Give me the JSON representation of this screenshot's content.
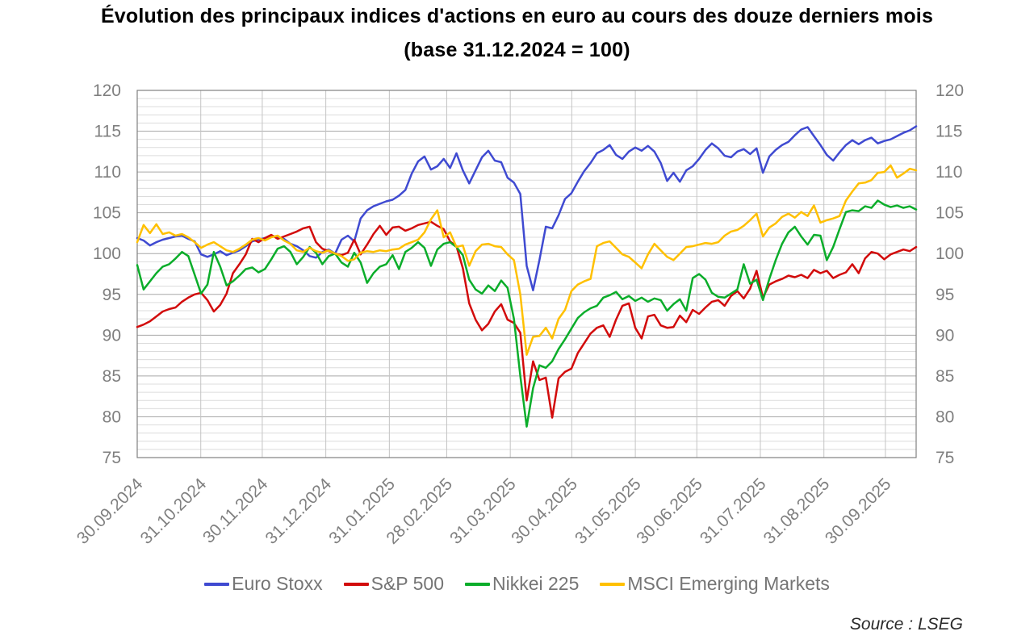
{
  "title": {
    "line1": "Évolution des principaux indices d'actions en euro au cours des douze derniers mois",
    "line2": "(base 31.12.2024 = 100)"
  },
  "source": {
    "text": "Source : LSEG"
  },
  "colors": {
    "grid_minor": "#dcdcdc",
    "grid_major": "#a8a8a8",
    "grid_vertical": "#c4c4c4",
    "frame": "#808080",
    "axis_text": "#7f7f7f",
    "legend_text": "#757575",
    "title_text": "#000000",
    "source_text": "#2b2b2b"
  },
  "chart_data": {
    "type": "line",
    "title": "Évolution des principaux indices d'actions en euro au cours des douze derniers mois",
    "subtitle": "(base 31.12.2024 = 100)",
    "grid": {
      "minor_step": 1,
      "major_step": 5,
      "vertical_at_ticks": true
    },
    "legend_position": "bottom",
    "ylim": [
      75,
      120
    ],
    "y_ticks": [
      120,
      115,
      110,
      105,
      100,
      95,
      90,
      85,
      80,
      75
    ],
    "x_axis_day_span": 380,
    "x_tick_days": [
      0,
      31,
      61,
      92,
      123,
      151,
      182,
      212,
      243,
      273,
      304,
      335,
      365
    ],
    "x_tick_labels": [
      "30.09.2024",
      "31.10.2024",
      "30.11.2024",
      "31.12.2024",
      "31.01.2025",
      "28.02.2025",
      "31.03.2025",
      "30.04.2025",
      "31.05.2025",
      "30.06.2025",
      "31.07.2025",
      "31.08.2025",
      "30.09.2025"
    ],
    "base_note": "index basis 31.12.2024 = 100",
    "series": [
      {
        "name": "Euro Stoxx",
        "color": "#3f4ad1",
        "values": [
          101.9,
          101.6,
          101.0,
          101.4,
          101.7,
          101.9,
          102.1,
          102.2,
          101.8,
          101.5,
          99.9,
          99.6,
          99.9,
          100.3,
          99.8,
          100.1,
          100.4,
          100.9,
          101.5,
          101.7,
          101.9,
          102.2,
          102.0,
          101.8,
          101.2,
          100.9,
          100.4,
          99.7,
          99.5,
          100.2,
          100.5,
          100.0,
          101.7,
          102.2,
          101.5,
          104.3,
          105.3,
          105.8,
          106.1,
          106.4,
          106.6,
          107.1,
          107.8,
          109.8,
          111.3,
          111.9,
          110.3,
          110.7,
          111.6,
          110.5,
          112.3,
          110.2,
          108.6,
          110.2,
          111.8,
          112.6,
          111.4,
          111.2,
          109.3,
          108.7,
          107.3,
          98.5,
          95.5,
          99.2,
          103.3,
          103.1,
          104.7,
          106.7,
          107.4,
          108.8,
          110.1,
          111.1,
          112.3,
          112.7,
          113.3,
          112.1,
          111.6,
          112.5,
          113.0,
          112.6,
          113.2,
          112.5,
          111.1,
          108.9,
          109.9,
          108.8,
          110.2,
          110.7,
          111.6,
          112.7,
          113.5,
          112.9,
          112.0,
          111.8,
          112.5,
          112.8,
          112.2,
          112.9,
          109.9,
          111.9,
          112.7,
          113.3,
          113.7,
          114.5,
          115.2,
          115.5,
          114.4,
          113.3,
          112.1,
          111.4,
          112.4,
          113.3,
          113.9,
          113.4,
          113.9,
          114.2,
          113.5,
          113.8,
          114.0,
          114.4,
          114.8,
          115.1,
          115.6
        ]
      },
      {
        "name": "S&P 500",
        "color": "#d20b0b",
        "values": [
          91.0,
          91.3,
          91.7,
          92.3,
          92.9,
          93.2,
          93.4,
          94.1,
          94.6,
          95.0,
          95.2,
          94.3,
          92.9,
          93.7,
          95.1,
          97.6,
          98.7,
          99.9,
          101.8,
          101.4,
          101.9,
          102.3,
          101.8,
          102.1,
          102.4,
          102.7,
          103.1,
          103.3,
          101.4,
          100.6,
          100.3,
          100.0,
          99.8,
          100.1,
          101.7,
          99.9,
          101.1,
          102.4,
          103.4,
          102.3,
          103.2,
          103.3,
          102.8,
          103.1,
          103.5,
          103.7,
          103.9,
          103.4,
          103.0,
          101.5,
          100.9,
          98.2,
          93.9,
          91.9,
          90.6,
          91.4,
          92.9,
          93.8,
          91.9,
          91.5,
          90.3,
          82.0,
          86.8,
          84.5,
          84.8,
          79.9,
          84.7,
          85.5,
          85.9,
          87.8,
          89.0,
          90.2,
          90.9,
          91.2,
          89.8,
          91.9,
          93.6,
          93.9,
          90.9,
          89.6,
          92.3,
          92.5,
          91.2,
          90.9,
          91.0,
          92.4,
          91.6,
          93.1,
          92.6,
          93.4,
          94.1,
          94.3,
          93.6,
          94.8,
          95.4,
          94.5,
          95.7,
          97.9,
          94.6,
          96.2,
          96.6,
          96.9,
          97.3,
          97.1,
          97.4,
          97.0,
          98.0,
          97.6,
          97.9,
          97.0,
          97.4,
          97.7,
          98.7,
          97.6,
          99.4,
          100.2,
          100.0,
          99.3,
          99.9,
          100.2,
          100.5,
          100.3,
          100.8
        ]
      },
      {
        "name": "Nikkei 225",
        "color": "#0bad2a",
        "values": [
          98.6,
          95.6,
          96.6,
          97.6,
          98.4,
          98.7,
          99.4,
          100.2,
          99.7,
          97.4,
          95.1,
          96.2,
          100.2,
          98.4,
          96.1,
          96.6,
          97.3,
          98.1,
          98.3,
          97.7,
          98.1,
          99.3,
          100.6,
          100.9,
          100.2,
          98.7,
          99.6,
          100.8,
          100.1,
          98.7,
          99.7,
          100.0,
          98.9,
          98.4,
          100.1,
          98.9,
          96.4,
          97.6,
          98.4,
          98.7,
          99.8,
          98.1,
          100.2,
          100.7,
          101.4,
          100.7,
          98.5,
          100.5,
          101.2,
          101.4,
          100.8,
          99.8,
          96.8,
          95.6,
          95.1,
          96.1,
          95.4,
          96.7,
          95.8,
          92.0,
          85.0,
          78.8,
          83.5,
          86.3,
          86.0,
          86.8,
          88.3,
          89.5,
          90.8,
          92.1,
          92.8,
          93.3,
          93.6,
          94.6,
          94.9,
          95.3,
          94.4,
          94.8,
          94.2,
          94.6,
          94.1,
          94.5,
          94.3,
          93.0,
          93.8,
          94.4,
          93.0,
          97.0,
          97.5,
          96.8,
          95.2,
          94.7,
          94.6,
          95.1,
          95.6,
          98.7,
          96.3,
          96.8,
          94.3,
          96.9,
          99.2,
          101.2,
          102.6,
          103.3,
          102.1,
          101.1,
          102.3,
          102.2,
          99.2,
          100.8,
          103.0,
          105.1,
          105.3,
          105.2,
          105.8,
          105.6,
          106.5,
          106.0,
          105.7,
          105.9,
          105.6,
          105.8,
          105.4
        ]
      },
      {
        "name": "MSCI Emerging Markets",
        "color": "#ffc000",
        "values": [
          101.4,
          103.5,
          102.5,
          103.6,
          102.4,
          102.6,
          102.2,
          102.4,
          102.0,
          101.4,
          100.7,
          101.1,
          101.4,
          100.9,
          100.4,
          100.2,
          100.6,
          101.1,
          101.7,
          101.9,
          101.6,
          102.0,
          102.2,
          101.6,
          101.2,
          100.4,
          100.2,
          100.7,
          100.3,
          100.1,
          100.4,
          100.0,
          99.7,
          99.1,
          99.3,
          100.1,
          100.3,
          100.2,
          100.4,
          100.3,
          100.5,
          100.6,
          101.1,
          101.4,
          101.7,
          102.6,
          104.2,
          105.3,
          102.0,
          102.6,
          100.8,
          101.0,
          98.5,
          100.3,
          101.1,
          101.2,
          100.9,
          100.8,
          99.9,
          99.2,
          95.0,
          87.6,
          89.8,
          89.9,
          90.9,
          89.6,
          92.0,
          93.1,
          95.4,
          96.2,
          96.6,
          96.9,
          100.9,
          101.3,
          101.5,
          100.7,
          99.9,
          99.6,
          98.9,
          98.2,
          99.9,
          101.2,
          100.4,
          99.6,
          99.2,
          100.0,
          100.8,
          100.9,
          101.1,
          101.3,
          101.2,
          101.4,
          102.2,
          102.7,
          102.9,
          103.4,
          104.1,
          104.9,
          102.1,
          103.2,
          103.7,
          104.5,
          104.9,
          104.4,
          105.1,
          104.6,
          105.9,
          103.8,
          104.1,
          104.3,
          104.6,
          106.5,
          107.6,
          108.6,
          108.7,
          109.0,
          109.9,
          110.0,
          110.8,
          109.3,
          109.8,
          110.4,
          110.2
        ]
      }
    ]
  },
  "layout_note": ""
}
